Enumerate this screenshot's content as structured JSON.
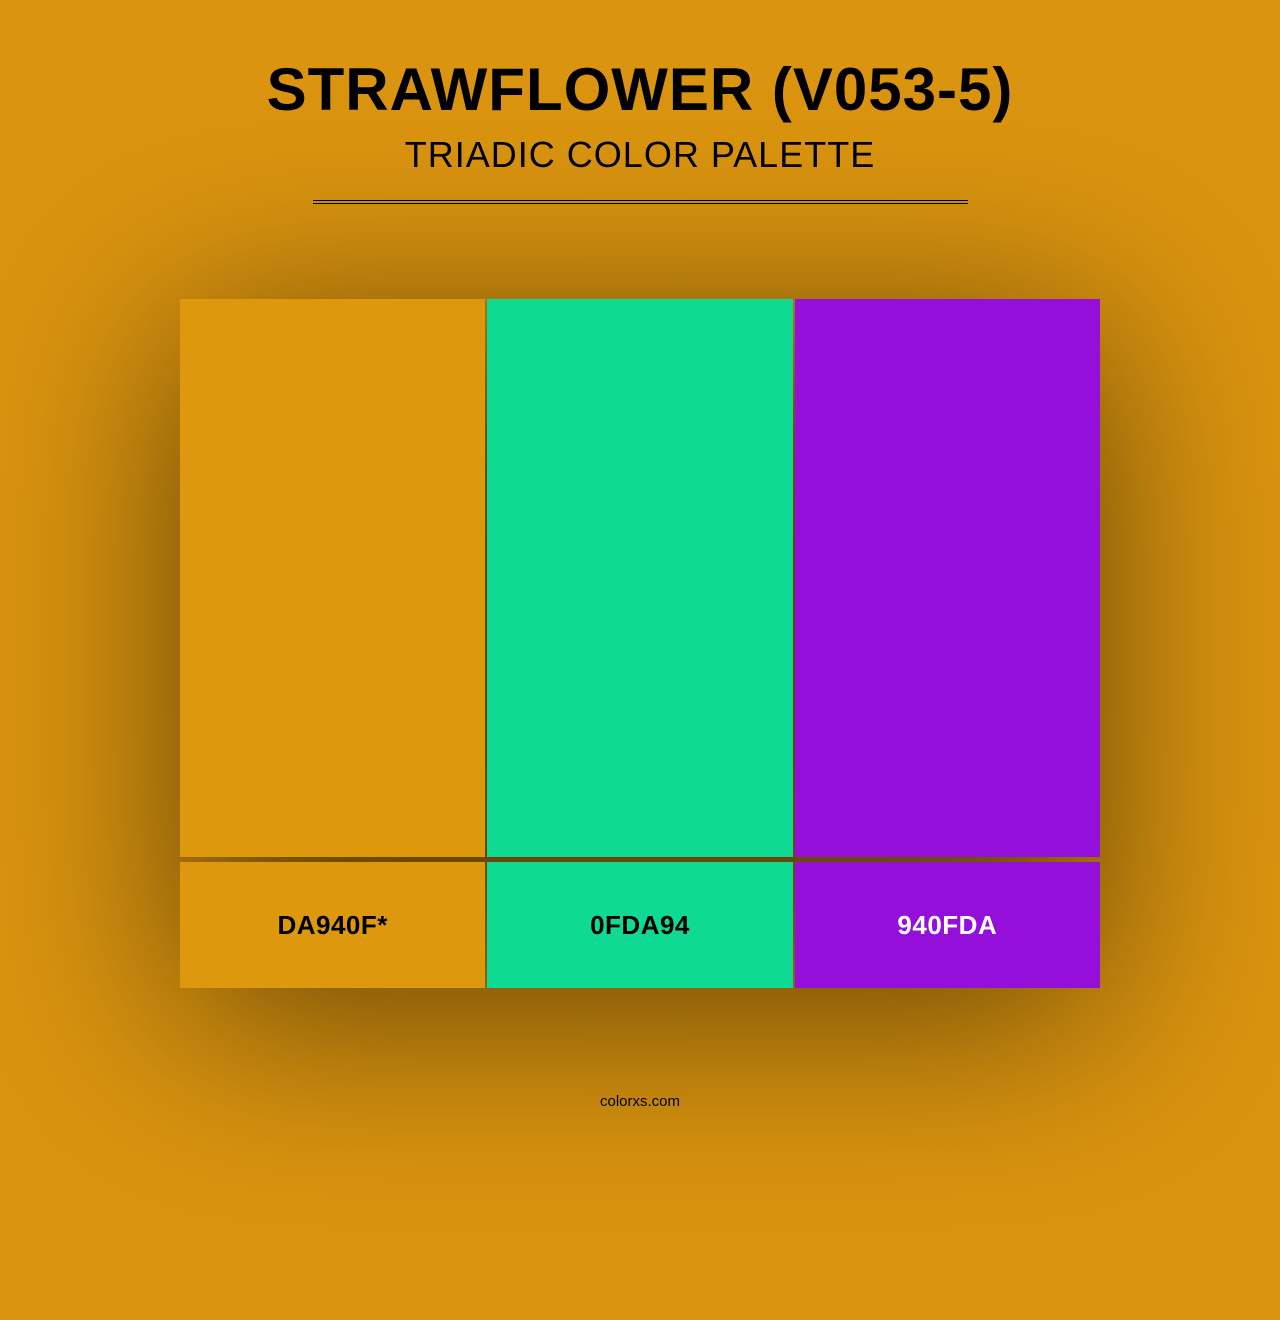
{
  "background_color": "#da940f",
  "header": {
    "title": "STRAWFLOWER (V053-5)",
    "subtitle": "TRIADIC COLOR PALETTE",
    "title_color": "#000000",
    "subtitle_color": "#000000",
    "title_fontsize": 60,
    "subtitle_fontsize": 36
  },
  "palette": {
    "type": "color-palette",
    "swatch_height": 558,
    "label_height": 126,
    "gap": 2,
    "colors": [
      {
        "hex": "#de980e",
        "label": "DA940F*",
        "label_color": "#000000"
      },
      {
        "hex": "#0fda94",
        "label": "0FDA94",
        "label_color": "#000000"
      },
      {
        "hex": "#940fda",
        "label": "940FDA",
        "label_color": "#ffffff"
      }
    ]
  },
  "footer": {
    "text": "colorxs.com"
  }
}
